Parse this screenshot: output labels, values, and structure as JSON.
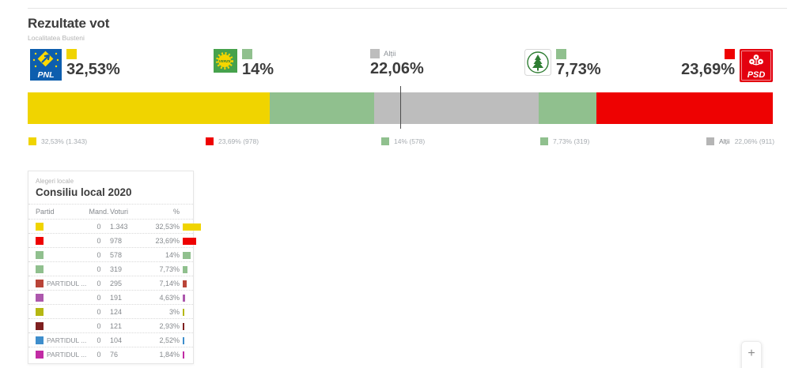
{
  "header": {
    "title": "Rezultate vot",
    "subtitle": "Localitatea Busteni"
  },
  "top_labels": [
    {
      "party": "PNL",
      "pct": "32,53%",
      "color": "#f0d400",
      "logo_text": "PNL"
    },
    {
      "party": "Verzii",
      "pct": "14%",
      "color": "#90c08e"
    },
    {
      "party": "Alții",
      "label": "Alții",
      "pct": "22,06%",
      "color": "#bdbdbd"
    },
    {
      "party": "PER",
      "pct": "7,73%",
      "color": "#90c08e"
    },
    {
      "party": "PSD",
      "pct": "23,69%",
      "color": "#ee0202",
      "logo_text": "PSD"
    }
  ],
  "chart_data": {
    "type": "bar",
    "variant": "stacked-horizontal",
    "title": "Rezultate vot - Localitatea Busteni",
    "segments": [
      {
        "label": "PNL",
        "pct": 32.53,
        "votes": 1343,
        "color": "#f0d400"
      },
      {
        "label": "Verzii",
        "pct": 14.0,
        "votes": 578,
        "color": "#90c08e"
      },
      {
        "label": "Alții",
        "pct": 22.06,
        "votes": 911,
        "color": "#bdbdbd"
      },
      {
        "label": "PER",
        "pct": 7.73,
        "votes": 319,
        "color": "#90c08e"
      },
      {
        "label": "PSD",
        "pct": 23.69,
        "votes": 978,
        "color": "#ee0202"
      }
    ],
    "marker_pct": 50,
    "xlim": [
      0,
      100
    ],
    "legend_position": "bottom"
  },
  "legend": [
    {
      "name": "",
      "text": "32,53% (1.343)",
      "color": "#f0d400"
    },
    {
      "name": "",
      "text": "23,69% (978)",
      "color": "#ee0202"
    },
    {
      "name": "",
      "text": "14% (578)",
      "color": "#90c08e"
    },
    {
      "name": "",
      "text": "7,73% (319)",
      "color": "#90c08e"
    },
    {
      "name": "Alții",
      "text": "22,06% (911)",
      "color": "#b5b5b5"
    }
  ],
  "table": {
    "kicker": "Alegeri locale",
    "title": "Consiliu local 2020",
    "columns": {
      "partid": "Partid",
      "mand": "Mand.",
      "voturi": "Voturi",
      "pct": "%"
    },
    "rows": [
      {
        "name": "",
        "color": "#f0d400",
        "mand": "0",
        "votes": "1.343",
        "pct": "32,53%",
        "pct_val": 32.53
      },
      {
        "name": "",
        "color": "#ee0202",
        "mand": "0",
        "votes": "978",
        "pct": "23,69%",
        "pct_val": 23.69
      },
      {
        "name": "",
        "color": "#90c08e",
        "mand": "0",
        "votes": "578",
        "pct": "14%",
        "pct_val": 14.0
      },
      {
        "name": "",
        "color": "#90c08e",
        "mand": "0",
        "votes": "319",
        "pct": "7,73%",
        "pct_val": 7.73
      },
      {
        "name": "PARTIDUL ...",
        "color": "#b94438",
        "mand": "0",
        "votes": "295",
        "pct": "7,14%",
        "pct_val": 7.14
      },
      {
        "name": "",
        "color": "#ad58ad",
        "mand": "0",
        "votes": "191",
        "pct": "4,63%",
        "pct_val": 4.63
      },
      {
        "name": "",
        "color": "#b5b713",
        "mand": "0",
        "votes": "124",
        "pct": "3%",
        "pct_val": 3.0
      },
      {
        "name": "",
        "color": "#7e2020",
        "mand": "0",
        "votes": "121",
        "pct": "2,93%",
        "pct_val": 2.93
      },
      {
        "name": "PARTIDUL ...",
        "color": "#3e8ecc",
        "mand": "0",
        "votes": "104",
        "pct": "2,52%",
        "pct_val": 2.52
      },
      {
        "name": "PARTIDUL ...",
        "color": "#c12ba4",
        "mand": "0",
        "votes": "76",
        "pct": "1,84%",
        "pct_val": 1.84
      }
    ]
  },
  "controls": {
    "zoom_in_label": "+"
  },
  "colors": {
    "pnl_blue": "#0d5eae",
    "verzii_green": "#46a24c",
    "per_green": "#2e7d32",
    "psd_red": "#e3000f",
    "marker": "#4d4d4d"
  }
}
